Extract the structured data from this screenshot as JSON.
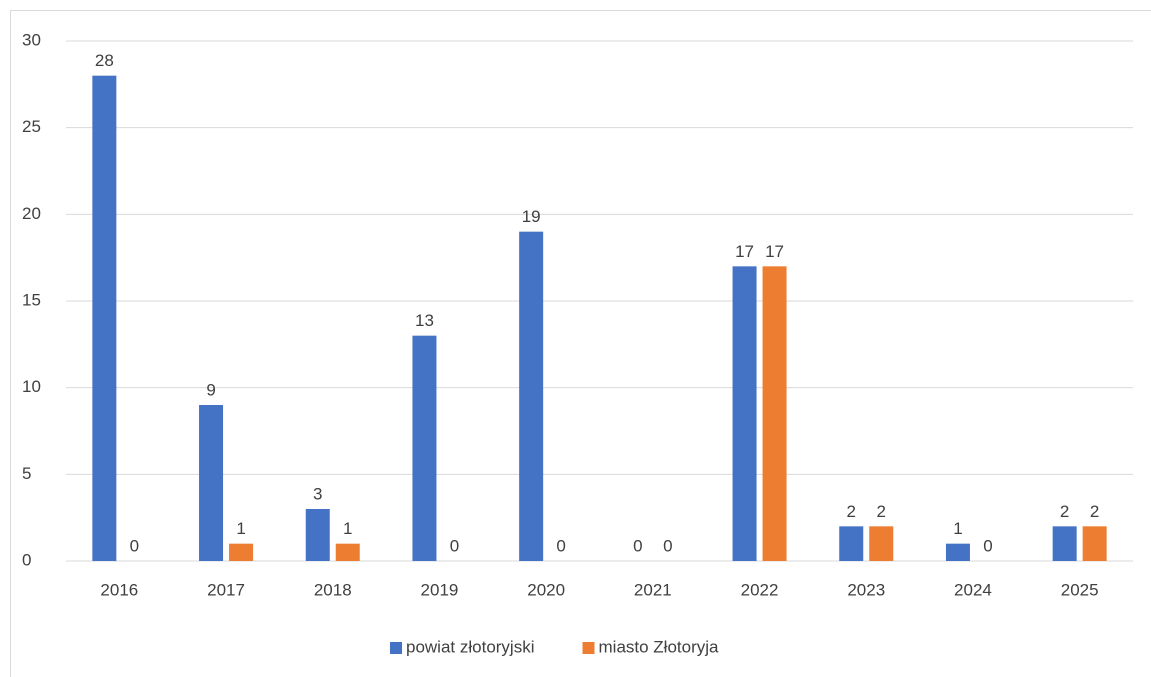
{
  "chart_data": {
    "type": "bar",
    "categories": [
      "2016",
      "2017",
      "2018",
      "2019",
      "2020",
      "2021",
      "2022",
      "2023",
      "2024",
      "2025"
    ],
    "series": [
      {
        "name": "powiat złotoryjski",
        "color": "#4472c4",
        "values": [
          28,
          9,
          3,
          13,
          19,
          0,
          17,
          2,
          1,
          2
        ]
      },
      {
        "name": "miasto Złotoryja",
        "color": "#ed7d31",
        "values": [
          0,
          1,
          1,
          0,
          0,
          0,
          17,
          2,
          0,
          2
        ]
      }
    ],
    "ylim": [
      0,
      30
    ],
    "yticks": [
      0,
      5,
      10,
      15,
      20,
      25,
      30
    ],
    "grid": true,
    "legend": "bottom"
  }
}
